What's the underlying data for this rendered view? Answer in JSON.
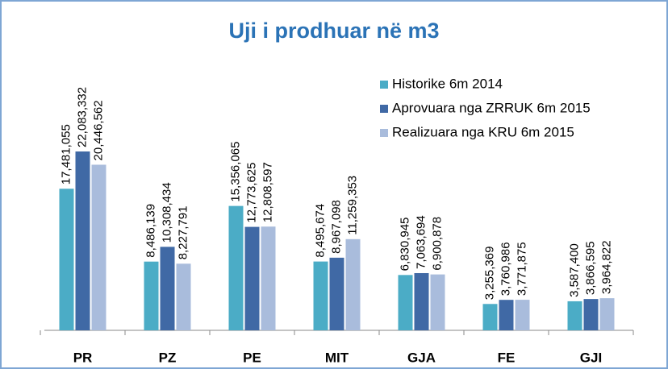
{
  "chart_data": {
    "type": "bar",
    "title": "Uji i prodhuar në m3",
    "categories": [
      "PR",
      "PZ",
      "PE",
      "MIT",
      "GJA",
      "FE",
      "GJI"
    ],
    "series": [
      {
        "name": "Historike 6m 2014",
        "color": "#4bacc6",
        "values": [
          17481055,
          8486139,
          15356065,
          8495674,
          6830945,
          3255369,
          3587400
        ],
        "value_labels": [
          "17,481,055",
          "8,486,139",
          "15,356,065",
          "8,495,674",
          "6,830,945",
          "3,255,369",
          "3,587,400"
        ]
      },
      {
        "name": "Aprovuara nga ZRRUK 6m 2015",
        "color": "#4069a5",
        "values": [
          22083332,
          10308434,
          12773625,
          8967098,
          7063694,
          3760986,
          3866595
        ],
        "value_labels": [
          "22,083,332",
          "10,308,434",
          "12,773,625",
          "8,967,098",
          "7,063,694",
          "3,760,986",
          "3,866,595"
        ]
      },
      {
        "name": "Realizuara nga KRU 6m 2015",
        "color": "#a9bcdc",
        "values": [
          20446562,
          8227791,
          12808597,
          11259353,
          6900878,
          3771875,
          3964822
        ],
        "value_labels": [
          "20,446,562",
          "8,227,791",
          "12,808,597",
          "11,259,353",
          "6,900,878",
          "3,771,875",
          "3,964,822"
        ]
      }
    ]
  }
}
